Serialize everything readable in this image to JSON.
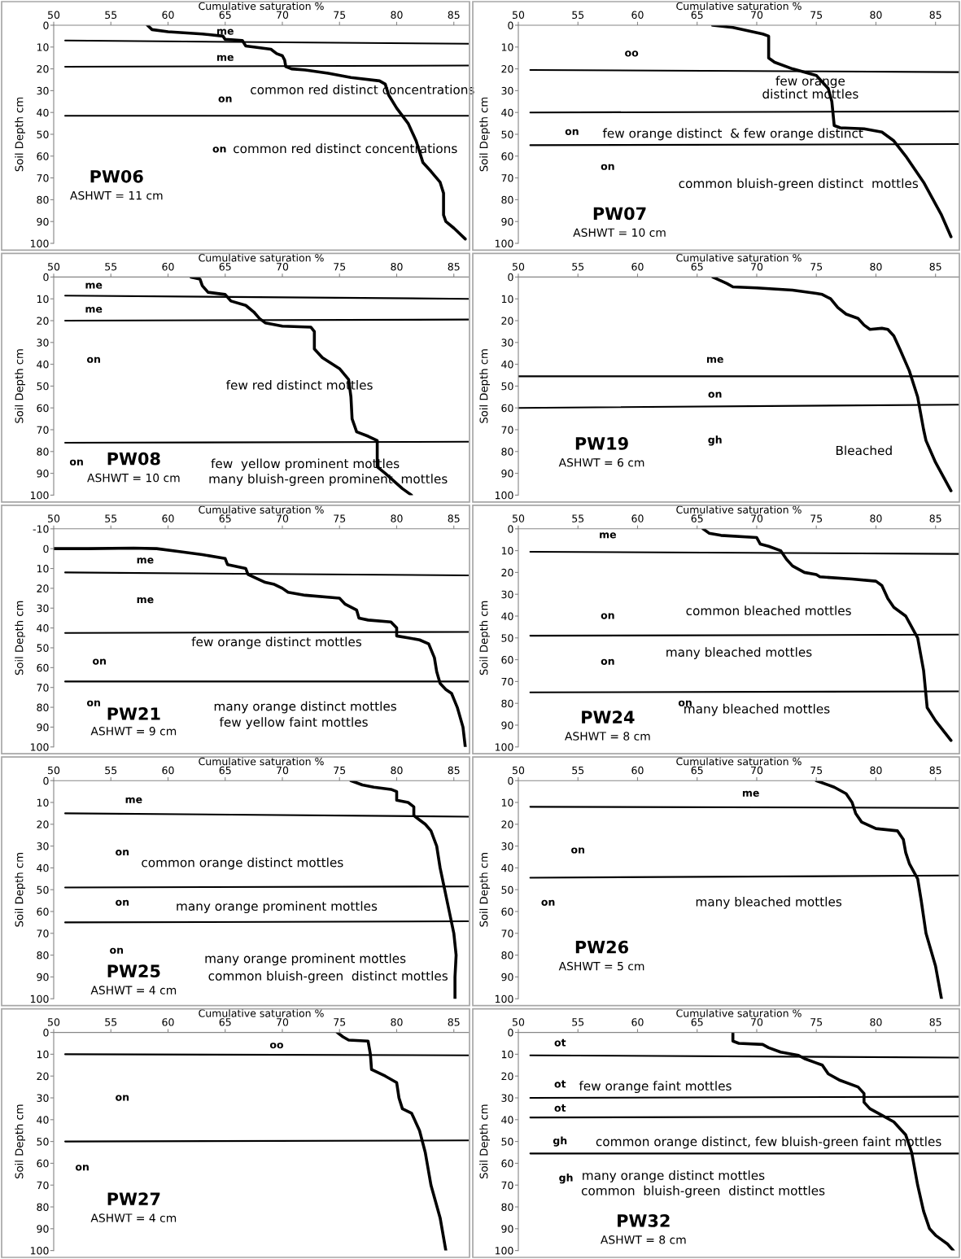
{
  "chart_data": [
    {
      "type": "line",
      "title": "PW06",
      "subtitle": "ASHWT = 11 cm",
      "xlabel": "Cumulative saturation %",
      "ylabel": "Soil Depth cm",
      "xlim": [
        50,
        86.3
      ],
      "ylim": [
        100,
        0
      ],
      "xticks": [
        50,
        55,
        60,
        65,
        70,
        75,
        80,
        85
      ],
      "yticks": [
        0,
        10,
        20,
        30,
        40,
        50,
        60,
        70,
        80,
        90,
        100
      ],
      "series": [
        {
          "color": "#000000",
          "x": [
            58.2,
            58.6,
            60,
            63,
            64.8,
            65,
            66.5,
            66.8,
            67.5,
            69,
            69.5,
            70,
            70.2,
            70.3,
            70.8,
            72,
            74,
            76,
            78.5,
            79,
            79.3,
            80,
            81,
            81.7,
            82,
            82.3,
            83,
            83.8,
            84.1,
            84.1,
            84.3,
            85,
            86
          ],
          "values": [
            0,
            2,
            3,
            4,
            5,
            6.5,
            7,
            9.5,
            10,
            11,
            13,
            14,
            16,
            19,
            20,
            20.5,
            22,
            24,
            25.5,
            27,
            32,
            38,
            45,
            53,
            58,
            63,
            67,
            72,
            77,
            87,
            90,
            93,
            98
          ]
        },
        {
          "color": "#000000",
          "x": [
            51,
            86.3
          ],
          "values": [
            7,
            8.5
          ]
        },
        {
          "color": "#000000",
          "x": [
            51,
            86.3
          ],
          "values": [
            19,
            18.5
          ]
        },
        {
          "color": "#000000",
          "x": [
            51,
            86.3
          ],
          "values": [
            41.5,
            41.5
          ]
        }
      ],
      "annotations": [
        "me",
        "me",
        "common red distinct concentrations",
        "on",
        "on",
        "common red distinct concentrations"
      ]
    },
    {
      "type": "line",
      "title": "PW07",
      "subtitle": "ASHWT = 10 cm",
      "xlabel": "Cumulative saturation %",
      "ylabel": "Soil Depth cm",
      "xlim": [
        50,
        87
      ],
      "ylim": [
        100,
        0
      ],
      "xticks": [
        50,
        55,
        60,
        65,
        70,
        75,
        80,
        85
      ],
      "yticks": [
        0,
        10,
        20,
        30,
        40,
        50,
        60,
        70,
        80,
        90,
        100
      ],
      "series": [
        {
          "color": "#000000",
          "x": [
            66.3,
            68,
            70.5,
            71,
            71,
            71.5,
            73,
            75,
            75.5,
            76,
            76.3,
            76.5,
            77,
            79,
            80.5,
            81.5,
            82.5,
            84,
            85.5,
            86.3
          ],
          "values": [
            0,
            1,
            4,
            5,
            15,
            17,
            20,
            23,
            26,
            29,
            35,
            46,
            47,
            47.5,
            49,
            53,
            60,
            72,
            87,
            97
          ]
        },
        {
          "color": "#000000",
          "x": [
            51,
            87
          ],
          "values": [
            20.5,
            21.5
          ]
        },
        {
          "color": "#000000",
          "x": [
            51,
            87
          ],
          "values": [
            40,
            39.5
          ]
        },
        {
          "color": "#000000",
          "x": [
            51,
            87
          ],
          "values": [
            55,
            54.5
          ]
        }
      ],
      "annotations": [
        "oo",
        "few orange\ndistinct mottles",
        "on",
        "few orange distinct  & few orange distinct",
        "on",
        "common bluish-green distinct  mottles"
      ]
    },
    {
      "type": "line",
      "title": "PW08",
      "subtitle": "ASHWT = 10 cm",
      "xlabel": "Cumulative saturation %",
      "ylabel": "Soil Depth cm",
      "xlim": [
        50,
        86.3
      ],
      "ylim": [
        100,
        0
      ],
      "xticks": [
        50,
        55,
        60,
        65,
        70,
        75,
        80,
        85
      ],
      "yticks": [
        0,
        10,
        20,
        30,
        40,
        50,
        60,
        70,
        80,
        90,
        100
      ],
      "series": [
        {
          "color": "#000000",
          "x": [
            62,
            62.8,
            63,
            63.5,
            65,
            65.5,
            66.8,
            67.5,
            68,
            68.5,
            70,
            72.5,
            72.8,
            72.8,
            73.5,
            75,
            75.8,
            76,
            76.1,
            76.5,
            77.5,
            78.3,
            78.3,
            79,
            80.5,
            81.3
          ],
          "values": [
            0,
            1,
            4,
            7,
            8,
            11,
            13,
            16,
            19,
            21,
            22.5,
            23,
            25,
            33,
            37,
            42,
            47,
            55,
            65,
            71,
            73,
            75,
            87,
            90,
            97,
            100
          ]
        },
        {
          "color": "#000000",
          "x": [
            51,
            86.3
          ],
          "values": [
            8.5,
            10
          ]
        },
        {
          "color": "#000000",
          "x": [
            51,
            86.3
          ],
          "values": [
            20,
            19.5
          ]
        },
        {
          "color": "#000000",
          "x": [
            51,
            86.3
          ],
          "values": [
            76,
            75.5
          ]
        }
      ],
      "annotations": [
        "me",
        "me",
        "on",
        "few red distinct mottles",
        "on",
        "few  yellow prominent mottles",
        "many bluish-green prominent  mottles"
      ]
    },
    {
      "type": "line",
      "title": "PW19",
      "subtitle": "ASHWT = 6 cm",
      "xlabel": "Cumulative saturation %",
      "ylabel": "Soil Depth cm",
      "xlim": [
        50,
        87
      ],
      "ylim": [
        100,
        0
      ],
      "xticks": [
        50,
        55,
        60,
        65,
        70,
        75,
        80,
        85
      ],
      "yticks": [
        0,
        10,
        20,
        30,
        40,
        50,
        60,
        70,
        80,
        90,
        100
      ],
      "series": [
        {
          "color": "#000000",
          "x": [
            66.3,
            67.5,
            68,
            70,
            73,
            75,
            75.5,
            76.2,
            76.8,
            77.5,
            78.5,
            79,
            79.5,
            80.5,
            81,
            81.5,
            82,
            82.8,
            83.5,
            84,
            84.2,
            85,
            86.3
          ],
          "values": [
            0,
            3,
            4.5,
            5,
            6,
            7.5,
            8,
            10,
            14,
            17,
            19,
            22,
            24,
            23.5,
            24,
            27,
            33,
            43,
            55,
            70,
            75,
            85,
            98
          ]
        },
        {
          "color": "#000000",
          "x": [
            50,
            87
          ],
          "values": [
            45.5,
            45.5
          ]
        },
        {
          "color": "#000000",
          "x": [
            50,
            87
          ],
          "values": [
            60,
            58.5
          ]
        }
      ],
      "annotations": [
        "me",
        "on",
        "gh",
        "Bleached"
      ]
    },
    {
      "type": "line",
      "title": "PW21",
      "subtitle": "ASHWT = 9 cm",
      "xlabel": "Cumulative saturation %",
      "ylabel": "Soil Depth cm",
      "xlim": [
        50,
        86.3
      ],
      "ylim": [
        100,
        -10
      ],
      "xticks": [
        50,
        55,
        60,
        65,
        70,
        75,
        80,
        85
      ],
      "yticks": [
        -10,
        0,
        10,
        20,
        30,
        40,
        50,
        60,
        70,
        80,
        90,
        100
      ],
      "series": [
        {
          "color": "#000000",
          "x": [
            50,
            53,
            57,
            59,
            61,
            63,
            65,
            65.2,
            66.8,
            67,
            68.5,
            69.3,
            70,
            70.5,
            72,
            75,
            75.5,
            76.5,
            76.7,
            77.5,
            79.5,
            80,
            80,
            81,
            82,
            82.8,
            83.3,
            83.5,
            83.8,
            84.3,
            84.8,
            85.3,
            85.8,
            86
          ],
          "values": [
            0,
            0,
            -0.3,
            0,
            1.5,
            3,
            5,
            8,
            10,
            13,
            17,
            18,
            20,
            22,
            23.5,
            25,
            28,
            31,
            35,
            36,
            37,
            40,
            44,
            45,
            46,
            48,
            55,
            62,
            68,
            71,
            73,
            80,
            90,
            100
          ]
        },
        {
          "color": "#000000",
          "x": [
            51,
            86.3
          ],
          "values": [
            12,
            13.5
          ]
        },
        {
          "color": "#000000",
          "x": [
            51,
            86.3
          ],
          "values": [
            42.5,
            42
          ]
        },
        {
          "color": "#000000",
          "x": [
            51,
            86.3
          ],
          "values": [
            67,
            67
          ]
        }
      ],
      "annotations": [
        "me",
        "me",
        "few orange distinct mottles",
        "on",
        "on",
        "many orange distinct mottles",
        "few yellow faint mottles"
      ]
    },
    {
      "type": "line",
      "title": "PW24",
      "subtitle": "ASHWT = 8 cm",
      "xlabel": "Cumulative saturation %",
      "ylabel": "Soil Depth cm",
      "xlim": [
        50,
        87
      ],
      "ylim": [
        100,
        0
      ],
      "xticks": [
        50,
        55,
        60,
        65,
        70,
        75,
        80,
        85
      ],
      "yticks": [
        0,
        10,
        20,
        30,
        40,
        50,
        60,
        70,
        80,
        90,
        100
      ],
      "series": [
        {
          "color": "#000000",
          "x": [
            65.5,
            66,
            67,
            70,
            70.3,
            71,
            72,
            72.5,
            73,
            74,
            75,
            75.3,
            78,
            80,
            80.5,
            81,
            81.5,
            82.5,
            83.5,
            84,
            84.3,
            85,
            86.3
          ],
          "values": [
            0,
            2,
            3,
            4,
            7,
            8,
            10,
            14,
            17,
            20,
            21,
            22,
            23,
            24,
            26,
            32,
            36,
            40,
            50,
            65,
            82,
            88,
            97
          ]
        },
        {
          "color": "#000000",
          "x": [
            51,
            87
          ],
          "values": [
            10.5,
            11.5
          ]
        },
        {
          "color": "#000000",
          "x": [
            51,
            87
          ],
          "values": [
            49,
            48.5
          ]
        },
        {
          "color": "#000000",
          "x": [
            51,
            87
          ],
          "values": [
            75,
            74.5
          ]
        }
      ],
      "annotations": [
        "me",
        "on",
        "common bleached mottles",
        "on",
        "many bleached mottles",
        "on",
        "many bleached mottles"
      ]
    },
    {
      "type": "line",
      "title": "PW25",
      "subtitle": "ASHWT = 4 cm",
      "xlabel": "Cumulative saturation %",
      "ylabel": "Soil Depth cm",
      "xlim": [
        50,
        86.3
      ],
      "ylim": [
        100,
        0
      ],
      "xticks": [
        50,
        55,
        60,
        65,
        70,
        75,
        80,
        85
      ],
      "yticks": [
        0,
        10,
        20,
        30,
        40,
        50,
        60,
        70,
        80,
        90,
        100
      ],
      "series": [
        {
          "color": "#000000",
          "x": [
            76,
            77,
            78,
            79.5,
            80,
            80,
            81,
            81.5,
            81.5,
            82,
            82.5,
            83,
            83.5,
            83.8,
            84.2,
            84.6,
            85,
            85.2,
            85.1,
            85.1
          ],
          "values": [
            0,
            2,
            3,
            4,
            5,
            9,
            10,
            12,
            16,
            18,
            20,
            23,
            30,
            40,
            50,
            60,
            70,
            80,
            90,
            100
          ]
        },
        {
          "color": "#000000",
          "x": [
            51,
            86.3
          ],
          "values": [
            15,
            16.5
          ]
        },
        {
          "color": "#000000",
          "x": [
            51,
            86.3
          ],
          "values": [
            49,
            48.5
          ]
        },
        {
          "color": "#000000",
          "x": [
            51,
            86.3
          ],
          "values": [
            65,
            64.5
          ]
        }
      ],
      "annotations": [
        "me",
        "on",
        "common orange distinct mottles",
        "on",
        "many orange prominent mottles",
        "on",
        "many orange prominent mottles",
        "common bluish-green  distinct mottles"
      ]
    },
    {
      "type": "line",
      "title": "PW26",
      "subtitle": "ASHWT = 5 cm",
      "xlabel": "Cumulative saturation %",
      "ylabel": "Soil Depth cm",
      "xlim": [
        50,
        87
      ],
      "ylim": [
        100,
        0
      ],
      "xticks": [
        50,
        55,
        60,
        65,
        70,
        75,
        80,
        85
      ],
      "yticks": [
        0,
        10,
        20,
        30,
        40,
        50,
        60,
        70,
        80,
        90,
        100
      ],
      "series": [
        {
          "color": "#000000",
          "x": [
            75,
            76.5,
            77.5,
            78,
            78.3,
            78.8,
            80,
            81.8,
            82.3,
            82.5,
            82.8,
            83.5,
            83.8,
            84.2,
            85,
            85.5
          ],
          "values": [
            0,
            3,
            6,
            10,
            15,
            19,
            22,
            23,
            27,
            33,
            38,
            45,
            55,
            70,
            85,
            100
          ]
        },
        {
          "color": "#000000",
          "x": [
            51,
            87
          ],
          "values": [
            12,
            12.5
          ]
        },
        {
          "color": "#000000",
          "x": [
            51,
            87
          ],
          "values": [
            44.5,
            43.5
          ]
        }
      ],
      "annotations": [
        "me",
        "on",
        "on",
        "many bleached mottles"
      ]
    },
    {
      "type": "line",
      "title": "PW27",
      "subtitle": "ASHWT = 4 cm",
      "xlabel": "Cumulative saturation %",
      "ylabel": "Soil Depth cm",
      "xlim": [
        50,
        86.3
      ],
      "ylim": [
        100,
        0
      ],
      "xticks": [
        50,
        55,
        60,
        65,
        70,
        75,
        80,
        85
      ],
      "yticks": [
        0,
        10,
        20,
        30,
        40,
        50,
        60,
        70,
        80,
        90,
        100
      ],
      "series": [
        {
          "color": "#000000",
          "x": [
            74.8,
            75.3,
            75.8,
            77.5,
            77.7,
            77.8,
            79,
            80,
            80.2,
            80.5,
            81.3,
            82,
            82.5,
            83,
            83.8,
            84.3
          ],
          "values": [
            0,
            2,
            3.5,
            4,
            10,
            17,
            20,
            23,
            30,
            35,
            37,
            45,
            55,
            70,
            85,
            100
          ]
        },
        {
          "color": "#000000",
          "x": [
            51,
            86.3
          ],
          "values": [
            10,
            10.5
          ]
        },
        {
          "color": "#000000",
          "x": [
            51,
            86.3
          ],
          "values": [
            50,
            49.5
          ]
        }
      ],
      "annotations": [
        "oo",
        "on",
        "on"
      ]
    },
    {
      "type": "line",
      "title": "PW32",
      "subtitle": "ASHWT = 8 cm",
      "xlabel": "Cumulative saturation %",
      "ylabel": "Soil Depth cm",
      "xlim": [
        50,
        87
      ],
      "ylim": [
        100,
        0
      ],
      "xticks": [
        50,
        55,
        60,
        65,
        70,
        75,
        80,
        85
      ],
      "yticks": [
        0,
        10,
        20,
        30,
        40,
        50,
        60,
        70,
        80,
        90,
        100
      ],
      "series": [
        {
          "color": "#000000",
          "x": [
            68,
            68,
            68.5,
            70.5,
            71,
            72,
            73.5,
            74,
            75,
            75.5,
            76,
            77,
            78.5,
            79,
            79,
            79.5,
            80.5,
            81.5,
            82.5,
            83,
            83.5,
            84,
            84.5,
            85,
            86,
            86.5
          ],
          "values": [
            0,
            4,
            5,
            5.5,
            7,
            9,
            10.5,
            12,
            14,
            15,
            19,
            22,
            25,
            28,
            32,
            35,
            38,
            41,
            47,
            55,
            70,
            82,
            90,
            93,
            97,
            100
          ]
        },
        {
          "color": "#000000",
          "x": [
            51,
            87
          ],
          "values": [
            10.5,
            11.5
          ]
        },
        {
          "color": "#000000",
          "x": [
            51,
            87
          ],
          "values": [
            30,
            29.5
          ]
        },
        {
          "color": "#000000",
          "x": [
            51,
            87
          ],
          "values": [
            39,
            38.5
          ]
        },
        {
          "color": "#000000",
          "x": [
            51,
            87
          ],
          "values": [
            55.5,
            55.5
          ]
        }
      ],
      "annotations": [
        "ot",
        "ot",
        "few orange faint mottles",
        "ot",
        "gh",
        "common orange distinct, few bluish-green faint mottles",
        "gh",
        "many orange distinct mottles",
        "common  bluish-green  distinct mottles"
      ]
    }
  ]
}
